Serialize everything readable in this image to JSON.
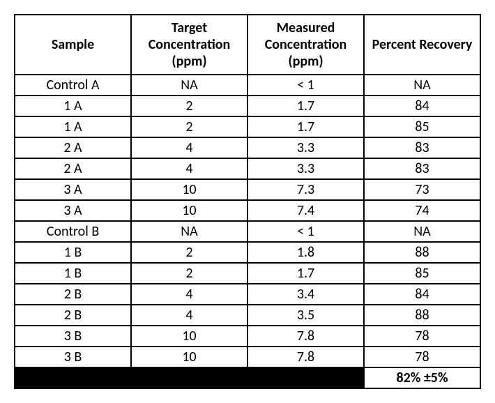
{
  "table": {
    "columns": [
      "Sample",
      "Target Concentration (ppm)",
      "Measured Concentration (ppm)",
      "Percent Recovery"
    ],
    "rows": [
      [
        "Control A",
        "NA",
        "< 1",
        "NA"
      ],
      [
        "1 A",
        "2",
        "1.7",
        "84"
      ],
      [
        "1 A",
        "2",
        "1.7",
        "85"
      ],
      [
        "2 A",
        "4",
        "3.3",
        "83"
      ],
      [
        "2 A",
        "4",
        "3.3",
        "83"
      ],
      [
        "3 A",
        "10",
        "7.3",
        "73"
      ],
      [
        "3 A",
        "10",
        "7.4",
        "74"
      ],
      [
        "Control B",
        "NA",
        "< 1",
        "NA"
      ],
      [
        "1 B",
        "2",
        "1.8",
        "88"
      ],
      [
        "1 B",
        "2",
        "1.7",
        "85"
      ],
      [
        "2 B",
        "4",
        "3.4",
        "84"
      ],
      [
        "2 B",
        "4",
        "3.5",
        "88"
      ],
      [
        "3 B",
        "10",
        "7.8",
        "78"
      ],
      [
        "3 B",
        "10",
        "7.8",
        "78"
      ]
    ],
    "summary_value": "82% ±5%",
    "header_fontsize": 20,
    "header_fontweight": "700",
    "cell_fontsize": 20,
    "border_color": "#000000",
    "border_width": 2,
    "background_color": "#ffffff",
    "text_color": "#000000",
    "summary_black_bg": "#000000",
    "col_widths_pct": [
      25,
      25,
      25,
      25
    ],
    "alignment": "center"
  }
}
